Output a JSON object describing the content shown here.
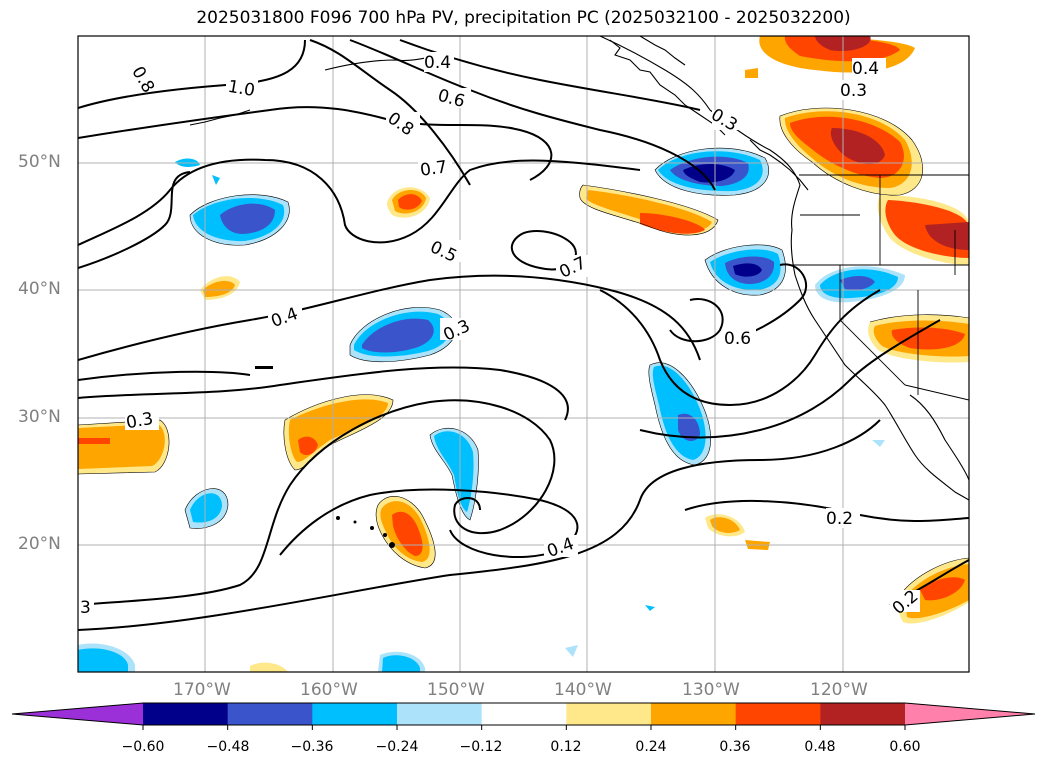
{
  "title": "2025031800 F096 700 hPa PV, precipitation PC (2025032100 - 2025032200)",
  "lat_labels": [
    "50°N",
    "40°N",
    "30°N",
    "20°N"
  ],
  "lon_labels": [
    "170°W",
    "160°W",
    "150°W",
    "140°W",
    "130°W",
    "120°W"
  ],
  "contour_labels": [
    "0.8",
    "1.0",
    "0.4",
    "0.6",
    "0.8",
    "0.7",
    "0.5",
    "0.4",
    "0.3",
    "0.7",
    "0.6",
    "0.3",
    "0.4",
    "0.3",
    "0.2",
    "0.4",
    "0.3",
    "0.2",
    "3"
  ],
  "colorbar": {
    "ticks": [
      "−0.60",
      "−0.48",
      "−0.36",
      "−0.24",
      "−0.12",
      "0.12",
      "0.24",
      "0.36",
      "0.48",
      "0.60"
    ],
    "colors": [
      "#9b30d9",
      "#00008b",
      "#3a55cc",
      "#00bfff",
      "#ade3fa",
      "#ffffff",
      "#ffe88a",
      "#ffa500",
      "#ff4500",
      "#b22222",
      "#ff80aa"
    ]
  }
}
